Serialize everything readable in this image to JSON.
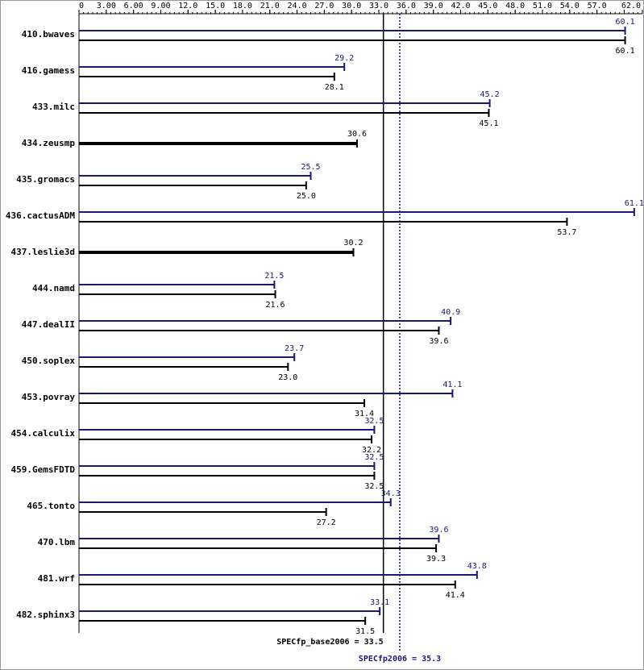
{
  "chart_data": {
    "type": "bar",
    "orientation": "horizontal",
    "categories": [
      "410.bwaves",
      "416.gamess",
      "433.milc",
      "434.zeusmp",
      "435.gromacs",
      "436.cactusADM",
      "437.leslie3d",
      "444.namd",
      "447.dealII",
      "450.soplex",
      "453.povray",
      "454.calculix",
      "459.GemsFDTD",
      "465.tonto",
      "470.lbm",
      "481.wrf",
      "482.sphinx3"
    ],
    "series": [
      {
        "color": "#191970",
        "values": [
          60.1,
          29.2,
          45.2,
          null,
          25.5,
          61.1,
          null,
          21.5,
          40.9,
          23.7,
          41.1,
          32.5,
          32.5,
          34.3,
          39.6,
          43.8,
          33.1
        ],
        "value_labels": [
          "60.1",
          "29.2",
          "45.2",
          null,
          "25.5",
          "61.1",
          null,
          "21.5",
          "40.9",
          "23.7",
          "41.1",
          "32.5",
          "32.5",
          "34.3",
          "39.6",
          "43.8",
          "33.1"
        ]
      },
      {
        "color": "#000000",
        "values": [
          60.1,
          28.1,
          45.1,
          30.6,
          25.0,
          53.7,
          30.2,
          21.6,
          39.6,
          23.0,
          31.4,
          32.2,
          32.5,
          27.2,
          39.3,
          41.4,
          31.5
        ],
        "value_labels": [
          "60.1",
          "28.1",
          "45.1",
          "30.6",
          "25.0",
          "53.7",
          "30.2",
          "21.6",
          "39.6",
          "23.0",
          "31.4",
          "32.2",
          "32.5",
          "27.2",
          "39.3",
          "41.4",
          "31.5"
        ]
      }
    ],
    "xlim": [
      0,
      62
    ],
    "xticks": [
      0,
      {
        "value": 3,
        "label": "3.00"
      },
      {
        "value": 6,
        "label": "6.00"
      },
      {
        "value": 9,
        "label": "9.00"
      },
      {
        "value": 12,
        "label": "12.0"
      },
      {
        "value": 15,
        "label": "15.0"
      },
      {
        "value": 18,
        "label": "18.0"
      },
      {
        "value": 21,
        "label": "21.0"
      },
      {
        "value": 24,
        "label": "24.0"
      },
      {
        "value": 27,
        "label": "27.0"
      },
      {
        "value": 30,
        "label": "30.0"
      },
      {
        "value": 33,
        "label": "33.0"
      },
      {
        "value": 36,
        "label": "36.0"
      },
      {
        "value": 39,
        "label": "39.0"
      },
      {
        "value": 42,
        "label": "42.0"
      },
      {
        "value": 45,
        "label": "45.0"
      },
      {
        "value": 48,
        "label": "48.0"
      },
      {
        "value": 51,
        "label": "51.0"
      },
      {
        "value": 54,
        "label": "54.0"
      },
      {
        "value": 57,
        "label": "57.0"
      },
      {
        "value": 62,
        "label": "62.0"
      }
    ],
    "reference_lines": [
      {
        "label": "SPECfp_base2006 = 33.5",
        "value": 33.5,
        "color": "#000000"
      },
      {
        "label": "SPECfp2006 = 35.3",
        "value": 35.3,
        "color": "#191970"
      }
    ]
  }
}
